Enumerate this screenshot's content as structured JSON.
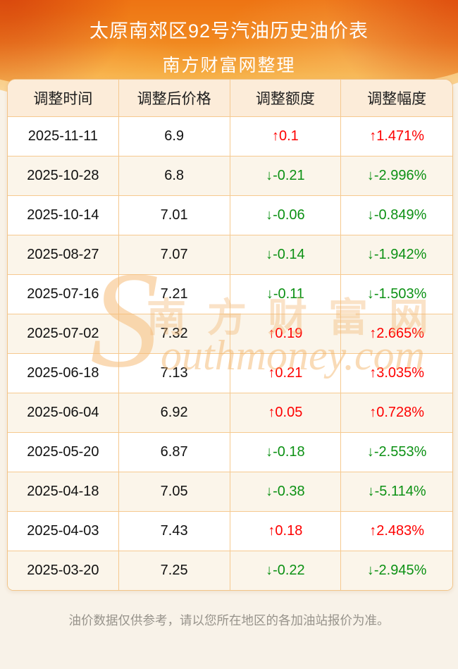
{
  "header": {
    "title": "太原南郊区92号汽油历史油价表",
    "subtitle": "南方财富网整理"
  },
  "watermark": {
    "initial": "S",
    "cn": "南方财富网",
    "en_rest": "outhmoney.com"
  },
  "footer": {
    "disclaimer": "油价数据仅供参考，请以您所在地区的各加油站报价为准。"
  },
  "colors": {
    "up_red": "#fe0000",
    "down_green": "#0c9114",
    "table_border": "#f6c98f",
    "header_row_bg": "#fcecd9",
    "alt_row_bg": "#fbf5ea",
    "page_bg": "#f8f2e8",
    "hero_orange_top": "#ee7413",
    "hero_orange_bottom": "#f9c765"
  },
  "chart_data": {
    "type": "table",
    "title": "太原南郊区92号汽油历史油价表",
    "columns": [
      "调整时间",
      "调整后价格",
      "调整额度",
      "调整幅度"
    ],
    "rows": [
      {
        "date": "2025-11-11",
        "price": "6.9",
        "change": "↑0.1",
        "pct": "↑1.471%",
        "dir": "up"
      },
      {
        "date": "2025-10-28",
        "price": "6.8",
        "change": "↓-0.21",
        "pct": "↓-2.996%",
        "dir": "down"
      },
      {
        "date": "2025-10-14",
        "price": "7.01",
        "change": "↓-0.06",
        "pct": "↓-0.849%",
        "dir": "down"
      },
      {
        "date": "2025-08-27",
        "price": "7.07",
        "change": "↓-0.14",
        "pct": "↓-1.942%",
        "dir": "down"
      },
      {
        "date": "2025-07-16",
        "price": "7.21",
        "change": "↓-0.11",
        "pct": "↓-1.503%",
        "dir": "down"
      },
      {
        "date": "2025-07-02",
        "price": "7.32",
        "change": "↑0.19",
        "pct": "↑2.665%",
        "dir": "up"
      },
      {
        "date": "2025-06-18",
        "price": "7.13",
        "change": "↑0.21",
        "pct": "↑3.035%",
        "dir": "up"
      },
      {
        "date": "2025-06-04",
        "price": "6.92",
        "change": "↑0.05",
        "pct": "↑0.728%",
        "dir": "up"
      },
      {
        "date": "2025-05-20",
        "price": "6.87",
        "change": "↓-0.18",
        "pct": "↓-2.553%",
        "dir": "down"
      },
      {
        "date": "2025-04-18",
        "price": "7.05",
        "change": "↓-0.38",
        "pct": "↓-5.114%",
        "dir": "down"
      },
      {
        "date": "2025-04-03",
        "price": "7.43",
        "change": "↑0.18",
        "pct": "↑2.483%",
        "dir": "up"
      },
      {
        "date": "2025-03-20",
        "price": "7.25",
        "change": "↓-0.22",
        "pct": "↓-2.945%",
        "dir": "down"
      }
    ]
  }
}
